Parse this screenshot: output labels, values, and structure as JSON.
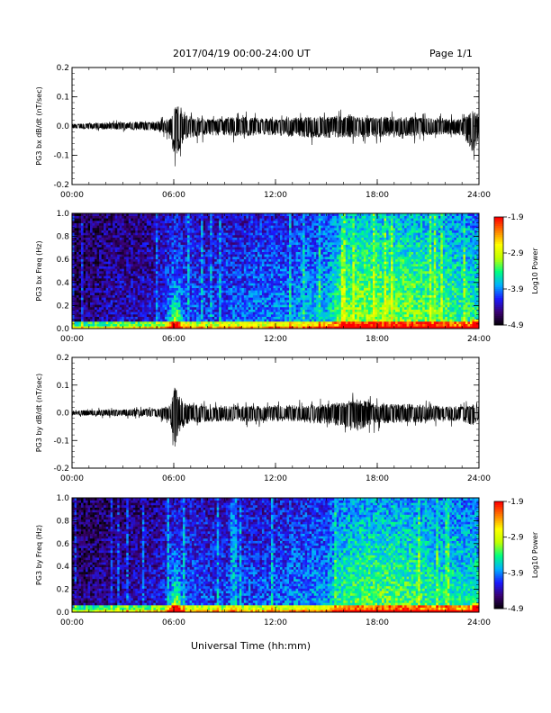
{
  "header": {
    "date_range": "2017/04/19  00:00-24:00 UT",
    "page": "Page 1/1"
  },
  "footer": {
    "xlabel": "Universal Time (hh:mm)"
  },
  "colors": {
    "trace": "#000000",
    "colormap": [
      "#000000",
      "#3a0070",
      "#1a1aff",
      "#00b0ff",
      "#00ff80",
      "#c0ff00",
      "#ffff00",
      "#ff8000",
      "#ff0000"
    ]
  },
  "chart_data": [
    {
      "type": "line",
      "ylabel": "PG3 bx dB/dt (nT/sec)",
      "xlim": [
        0,
        24
      ],
      "ylim": [
        -0.2,
        0.2
      ],
      "x_ticks": [
        "00:00",
        "06:00",
        "12:00",
        "18:00",
        "24:00"
      ],
      "y_ticks": [
        "-0.2",
        "-0.1",
        "0.0",
        "0.1",
        "0.2"
      ],
      "envelope": {
        "x": [
          0,
          1,
          2,
          3,
          4,
          5,
          5.8,
          6.0,
          6.3,
          6.6,
          7,
          8,
          9,
          10,
          11,
          12,
          13,
          14,
          15,
          16,
          17,
          18,
          19,
          20,
          21,
          22,
          23,
          23.7,
          24
        ],
        "upper": [
          0.01,
          0.012,
          0.015,
          0.015,
          0.018,
          0.02,
          0.03,
          0.08,
          0.1,
          0.05,
          0.04,
          0.03,
          0.035,
          0.04,
          0.035,
          0.03,
          0.035,
          0.04,
          0.04,
          0.045,
          0.04,
          0.035,
          0.04,
          0.04,
          0.035,
          0.03,
          0.03,
          0.07,
          0.04
        ],
        "lower": [
          -0.01,
          -0.012,
          -0.015,
          -0.015,
          -0.018,
          -0.02,
          -0.04,
          -0.13,
          -0.12,
          -0.06,
          -0.05,
          -0.04,
          -0.04,
          -0.045,
          -0.04,
          -0.04,
          -0.045,
          -0.05,
          -0.05,
          -0.05,
          -0.05,
          -0.045,
          -0.045,
          -0.045,
          -0.04,
          -0.035,
          -0.04,
          -0.12,
          -0.05
        ]
      }
    },
    {
      "type": "heatmap",
      "ylabel": "PG3 bx Freq (Hz)",
      "xlim": [
        0,
        24
      ],
      "ylim": [
        0,
        1.0
      ],
      "x_ticks": [
        "00:00",
        "06:00",
        "12:00",
        "18:00",
        "24:00"
      ],
      "y_ticks": [
        "0.0",
        "0.2",
        "0.4",
        "0.6",
        "0.8",
        "1.0"
      ],
      "colorbar": {
        "label": "Log10 Power",
        "ticks": [
          "-1.9",
          "-2.9",
          "-3.9",
          "-4.9"
        ],
        "range": [
          -4.9,
          -1.9
        ]
      },
      "intensity_by_hour": [
        0.12,
        0.14,
        0.18,
        0.2,
        0.2,
        0.22,
        0.32,
        0.3,
        0.28,
        0.3,
        0.32,
        0.34,
        0.35,
        0.36,
        0.4,
        0.42,
        0.6,
        0.62,
        0.62,
        0.6,
        0.6,
        0.58,
        0.56,
        0.52,
        0.5
      ],
      "burst_hour": 6.1
    },
    {
      "type": "line",
      "ylabel": "PG3 by dB/dt (nT/sec)",
      "xlim": [
        0,
        24
      ],
      "ylim": [
        -0.2,
        0.2
      ],
      "x_ticks": [
        "00:00",
        "06:00",
        "12:00",
        "18:00",
        "24:00"
      ],
      "y_ticks": [
        "-0.2",
        "-0.1",
        "0.0",
        "0.1",
        "0.2"
      ],
      "envelope": {
        "x": [
          0,
          1,
          2,
          3,
          4,
          5,
          5.8,
          6.0,
          6.3,
          6.6,
          7,
          8,
          9,
          10,
          11,
          12,
          13,
          14,
          15,
          16,
          16.8,
          17.5,
          18,
          19,
          20,
          21,
          22,
          23,
          23.7,
          24
        ],
        "upper": [
          0.01,
          0.012,
          0.015,
          0.015,
          0.018,
          0.02,
          0.03,
          0.12,
          0.09,
          0.05,
          0.04,
          0.03,
          0.03,
          0.03,
          0.03,
          0.03,
          0.035,
          0.035,
          0.04,
          0.05,
          0.06,
          0.05,
          0.04,
          0.04,
          0.04,
          0.035,
          0.03,
          0.03,
          0.04,
          0.03
        ],
        "lower": [
          -0.01,
          -0.012,
          -0.015,
          -0.015,
          -0.018,
          -0.02,
          -0.04,
          -0.16,
          -0.1,
          -0.06,
          -0.05,
          -0.04,
          -0.04,
          -0.04,
          -0.04,
          -0.04,
          -0.04,
          -0.045,
          -0.05,
          -0.07,
          -0.09,
          -0.06,
          -0.05,
          -0.045,
          -0.045,
          -0.04,
          -0.035,
          -0.04,
          -0.06,
          -0.03
        ]
      }
    },
    {
      "type": "heatmap",
      "ylabel": "PG3 by Freq (Hz)",
      "xlim": [
        0,
        24
      ],
      "ylim": [
        0,
        1.0
      ],
      "x_ticks": [
        "00:00",
        "06:00",
        "12:00",
        "18:00",
        "24:00"
      ],
      "y_ticks": [
        "0.0",
        "0.2",
        "0.4",
        "0.6",
        "0.8",
        "1.0"
      ],
      "colorbar": {
        "label": "Log10 Power",
        "ticks": [
          "-1.9",
          "-2.9",
          "-3.9",
          "-4.9"
        ],
        "range": [
          -4.9,
          -1.9
        ]
      },
      "intensity_by_hour": [
        0.12,
        0.14,
        0.16,
        0.18,
        0.2,
        0.22,
        0.32,
        0.3,
        0.28,
        0.28,
        0.3,
        0.3,
        0.32,
        0.34,
        0.36,
        0.38,
        0.52,
        0.55,
        0.56,
        0.56,
        0.55,
        0.52,
        0.5,
        0.48,
        0.48
      ],
      "burst_hour": 6.1
    }
  ]
}
